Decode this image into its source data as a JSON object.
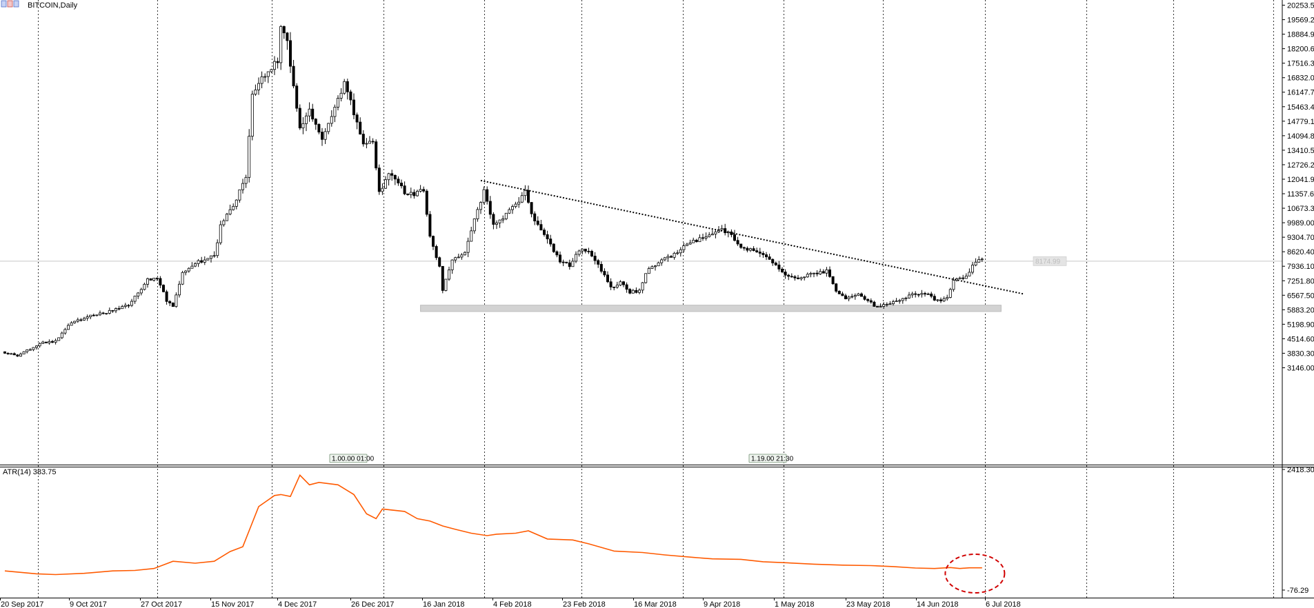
{
  "window": {
    "title": "BITCOIN,Daily",
    "icon": "chart-window-icon"
  },
  "indicator": {
    "label": "ATR(14) 383.75",
    "line_color": "#ff5a00"
  },
  "price_marker": "8174.99",
  "event_markers": [
    "1.00.00 01:00",
    "1.19.00 21:30"
  ],
  "chart_data": [
    {
      "type": "candlestick",
      "title": "BITCOIN,Daily",
      "x_tick_labels": [
        "20 Sep 2017",
        "9 Oct 2017",
        "27 Oct 2017",
        "15 Nov 2017",
        "4 Dec 2017",
        "26 Dec 2017",
        "16 Jan 2018",
        "4 Feb 2018",
        "23 Feb 2018",
        "16 Mar 2018",
        "9 Apr 2018",
        "1 May 2018",
        "23 May 2018",
        "14 Jun 2018",
        "6 Jul 2018"
      ],
      "y_tick_labels": [
        "20253.50",
        "19569.20",
        "18884.90",
        "18200.60",
        "17516.30",
        "16832.00",
        "16147.70",
        "15463.40",
        "14779.10",
        "14094.80",
        "13410.50",
        "12726.20",
        "12041.90",
        "11357.60",
        "10673.30",
        "9989.00",
        "9304.70",
        "8620.40",
        "7936.10",
        "7251.80",
        "6567.50",
        "5883.20",
        "5198.90",
        "4514.60",
        "3830.30",
        "3146.00"
      ],
      "ylim": [
        3000,
        20300
      ],
      "grid": "vertical-dotted",
      "trendline": {
        "from": [
          "2018-02-17",
          11980
        ],
        "to": [
          "2018-08-07",
          6630
        ],
        "style": "dotted"
      },
      "support_zone": {
        "from": "2018-01-29",
        "to": "2018-07-31",
        "low": 5800,
        "high": 6100
      },
      "close_price_line": 8174.99,
      "anchors": [
        [
          "2017-09-20",
          3900
        ],
        [
          "2017-09-25",
          3700
        ],
        [
          "2017-10-02",
          4300
        ],
        [
          "2017-10-07",
          4400
        ],
        [
          "2017-10-12",
          5300
        ],
        [
          "2017-10-18",
          5600
        ],
        [
          "2017-10-24",
          5800
        ],
        [
          "2017-10-30",
          6100
        ],
        [
          "2017-11-05",
          7300
        ],
        [
          "2017-11-08",
          7400
        ],
        [
          "2017-11-11",
          6300
        ],
        [
          "2017-11-13",
          6000
        ],
        [
          "2017-11-16",
          7600
        ],
        [
          "2017-11-20",
          8100
        ],
        [
          "2017-11-26",
          8400
        ],
        [
          "2017-11-28",
          9800
        ],
        [
          "2017-12-02",
          10800
        ],
        [
          "2017-12-06",
          12200
        ],
        [
          "2017-12-08",
          15900
        ],
        [
          "2017-12-12",
          17000
        ],
        [
          "2017-12-16",
          17600
        ],
        [
          "2017-12-17",
          19100
        ],
        [
          "2017-12-19",
          18600
        ],
        [
          "2017-12-21",
          16500
        ],
        [
          "2017-12-23",
          14500
        ],
        [
          "2017-12-26",
          15200
        ],
        [
          "2017-12-30",
          13800
        ],
        [
          "2018-01-02",
          14900
        ],
        [
          "2018-01-06",
          16500
        ],
        [
          "2018-01-09",
          15200
        ],
        [
          "2018-01-12",
          13600
        ],
        [
          "2018-01-15",
          13900
        ],
        [
          "2018-01-17",
          11400
        ],
        [
          "2018-01-20",
          12300
        ],
        [
          "2018-01-26",
          11300
        ],
        [
          "2018-01-31",
          11500
        ],
        [
          "2018-02-02",
          9300
        ],
        [
          "2018-02-05",
          7900
        ],
        [
          "2018-02-06",
          6800
        ],
        [
          "2018-02-09",
          8200
        ],
        [
          "2018-02-13",
          8600
        ],
        [
          "2018-02-16",
          10100
        ],
        [
          "2018-02-19",
          11500
        ],
        [
          "2018-02-22",
          9900
        ],
        [
          "2018-02-26",
          10400
        ],
        [
          "2018-03-01",
          10800
        ],
        [
          "2018-03-04",
          11400
        ],
        [
          "2018-03-07",
          10000
        ],
        [
          "2018-03-11",
          9300
        ],
        [
          "2018-03-15",
          8100
        ],
        [
          "2018-03-18",
          8000
        ],
        [
          "2018-03-21",
          8700
        ],
        [
          "2018-03-24",
          8600
        ],
        [
          "2018-03-27",
          8000
        ],
        [
          "2018-03-31",
          6900
        ],
        [
          "2018-04-03",
          7200
        ],
        [
          "2018-04-06",
          6700
        ],
        [
          "2018-04-09",
          6800
        ],
        [
          "2018-04-12",
          7900
        ],
        [
          "2018-04-15",
          8100
        ],
        [
          "2018-04-19",
          8400
        ],
        [
          "2018-04-23",
          8900
        ],
        [
          "2018-04-26",
          9100
        ],
        [
          "2018-04-30",
          9300
        ],
        [
          "2018-05-04",
          9700
        ],
        [
          "2018-05-08",
          9400
        ],
        [
          "2018-05-11",
          8800
        ],
        [
          "2018-05-15",
          8700
        ],
        [
          "2018-05-19",
          8300
        ],
        [
          "2018-05-22",
          8000
        ],
        [
          "2018-05-25",
          7500
        ],
        [
          "2018-05-29",
          7400
        ],
        [
          "2018-06-02",
          7600
        ],
        [
          "2018-06-07",
          7700
        ],
        [
          "2018-06-10",
          6800
        ],
        [
          "2018-06-13",
          6400
        ],
        [
          "2018-06-17",
          6600
        ],
        [
          "2018-06-22",
          6100
        ],
        [
          "2018-06-24",
          6050
        ],
        [
          "2018-06-29",
          6300
        ],
        [
          "2018-07-04",
          6600
        ],
        [
          "2018-07-08",
          6700
        ],
        [
          "2018-07-12",
          6300
        ],
        [
          "2018-07-15",
          6400
        ],
        [
          "2018-07-17",
          7300
        ],
        [
          "2018-07-21",
          7400
        ],
        [
          "2018-07-24",
          8200
        ],
        [
          "2018-07-25",
          8300
        ]
      ]
    },
    {
      "type": "line",
      "title": "ATR(14) 383.75",
      "y_tick_labels": [
        "2418.30",
        "-76.29"
      ],
      "ylim": [
        -76.29,
        2418.3
      ],
      "highlight": {
        "x": "2018-07-21",
        "style": "dashed-ellipse",
        "color": "#d00000"
      },
      "series": [
        {
          "points": [
            [
              "2017-09-20",
              320
            ],
            [
              "2017-09-30",
              260
            ],
            [
              "2017-10-06",
              245
            ],
            [
              "2017-10-15",
              270
            ],
            [
              "2017-10-24",
              320
            ],
            [
              "2017-10-31",
              330
            ],
            [
              "2017-11-06",
              370
            ],
            [
              "2017-11-12",
              520
            ],
            [
              "2017-11-19",
              480
            ],
            [
              "2017-11-25",
              520
            ],
            [
              "2017-11-30",
              720
            ],
            [
              "2017-12-04",
              820
            ],
            [
              "2017-12-09",
              1650
            ],
            [
              "2017-12-14",
              1880
            ],
            [
              "2017-12-16",
              1900
            ],
            [
              "2017-12-19",
              1860
            ],
            [
              "2017-12-22",
              2300
            ],
            [
              "2017-12-25",
              2100
            ],
            [
              "2017-12-28",
              2150
            ],
            [
              "2018-01-03",
              2100
            ],
            [
              "2018-01-08",
              1900
            ],
            [
              "2018-01-12",
              1500
            ],
            [
              "2018-01-15",
              1400
            ],
            [
              "2018-01-17",
              1600
            ],
            [
              "2018-01-24",
              1550
            ],
            [
              "2018-01-28",
              1400
            ],
            [
              "2018-02-01",
              1350
            ],
            [
              "2018-02-05",
              1250
            ],
            [
              "2018-02-09",
              1180
            ],
            [
              "2018-02-14",
              1100
            ],
            [
              "2018-02-19",
              1050
            ],
            [
              "2018-02-22",
              1080
            ],
            [
              "2018-02-28",
              1100
            ],
            [
              "2018-03-04",
              1150
            ],
            [
              "2018-03-10",
              980
            ],
            [
              "2018-03-18",
              960
            ],
            [
              "2018-03-23",
              880
            ],
            [
              "2018-03-31",
              730
            ],
            [
              "2018-04-09",
              700
            ],
            [
              "2018-04-16",
              650
            ],
            [
              "2018-04-25",
              600
            ],
            [
              "2018-05-01",
              570
            ],
            [
              "2018-05-10",
              560
            ],
            [
              "2018-05-17",
              510
            ],
            [
              "2018-05-24",
              490
            ],
            [
              "2018-06-02",
              460
            ],
            [
              "2018-06-11",
              440
            ],
            [
              "2018-06-20",
              430
            ],
            [
              "2018-06-27",
              410
            ],
            [
              "2018-07-04",
              380
            ],
            [
              "2018-07-10",
              370
            ],
            [
              "2018-07-15",
              390
            ],
            [
              "2018-07-18",
              370
            ],
            [
              "2018-07-21",
              384
            ],
            [
              "2018-07-25",
              383.75
            ]
          ]
        }
      ]
    }
  ]
}
